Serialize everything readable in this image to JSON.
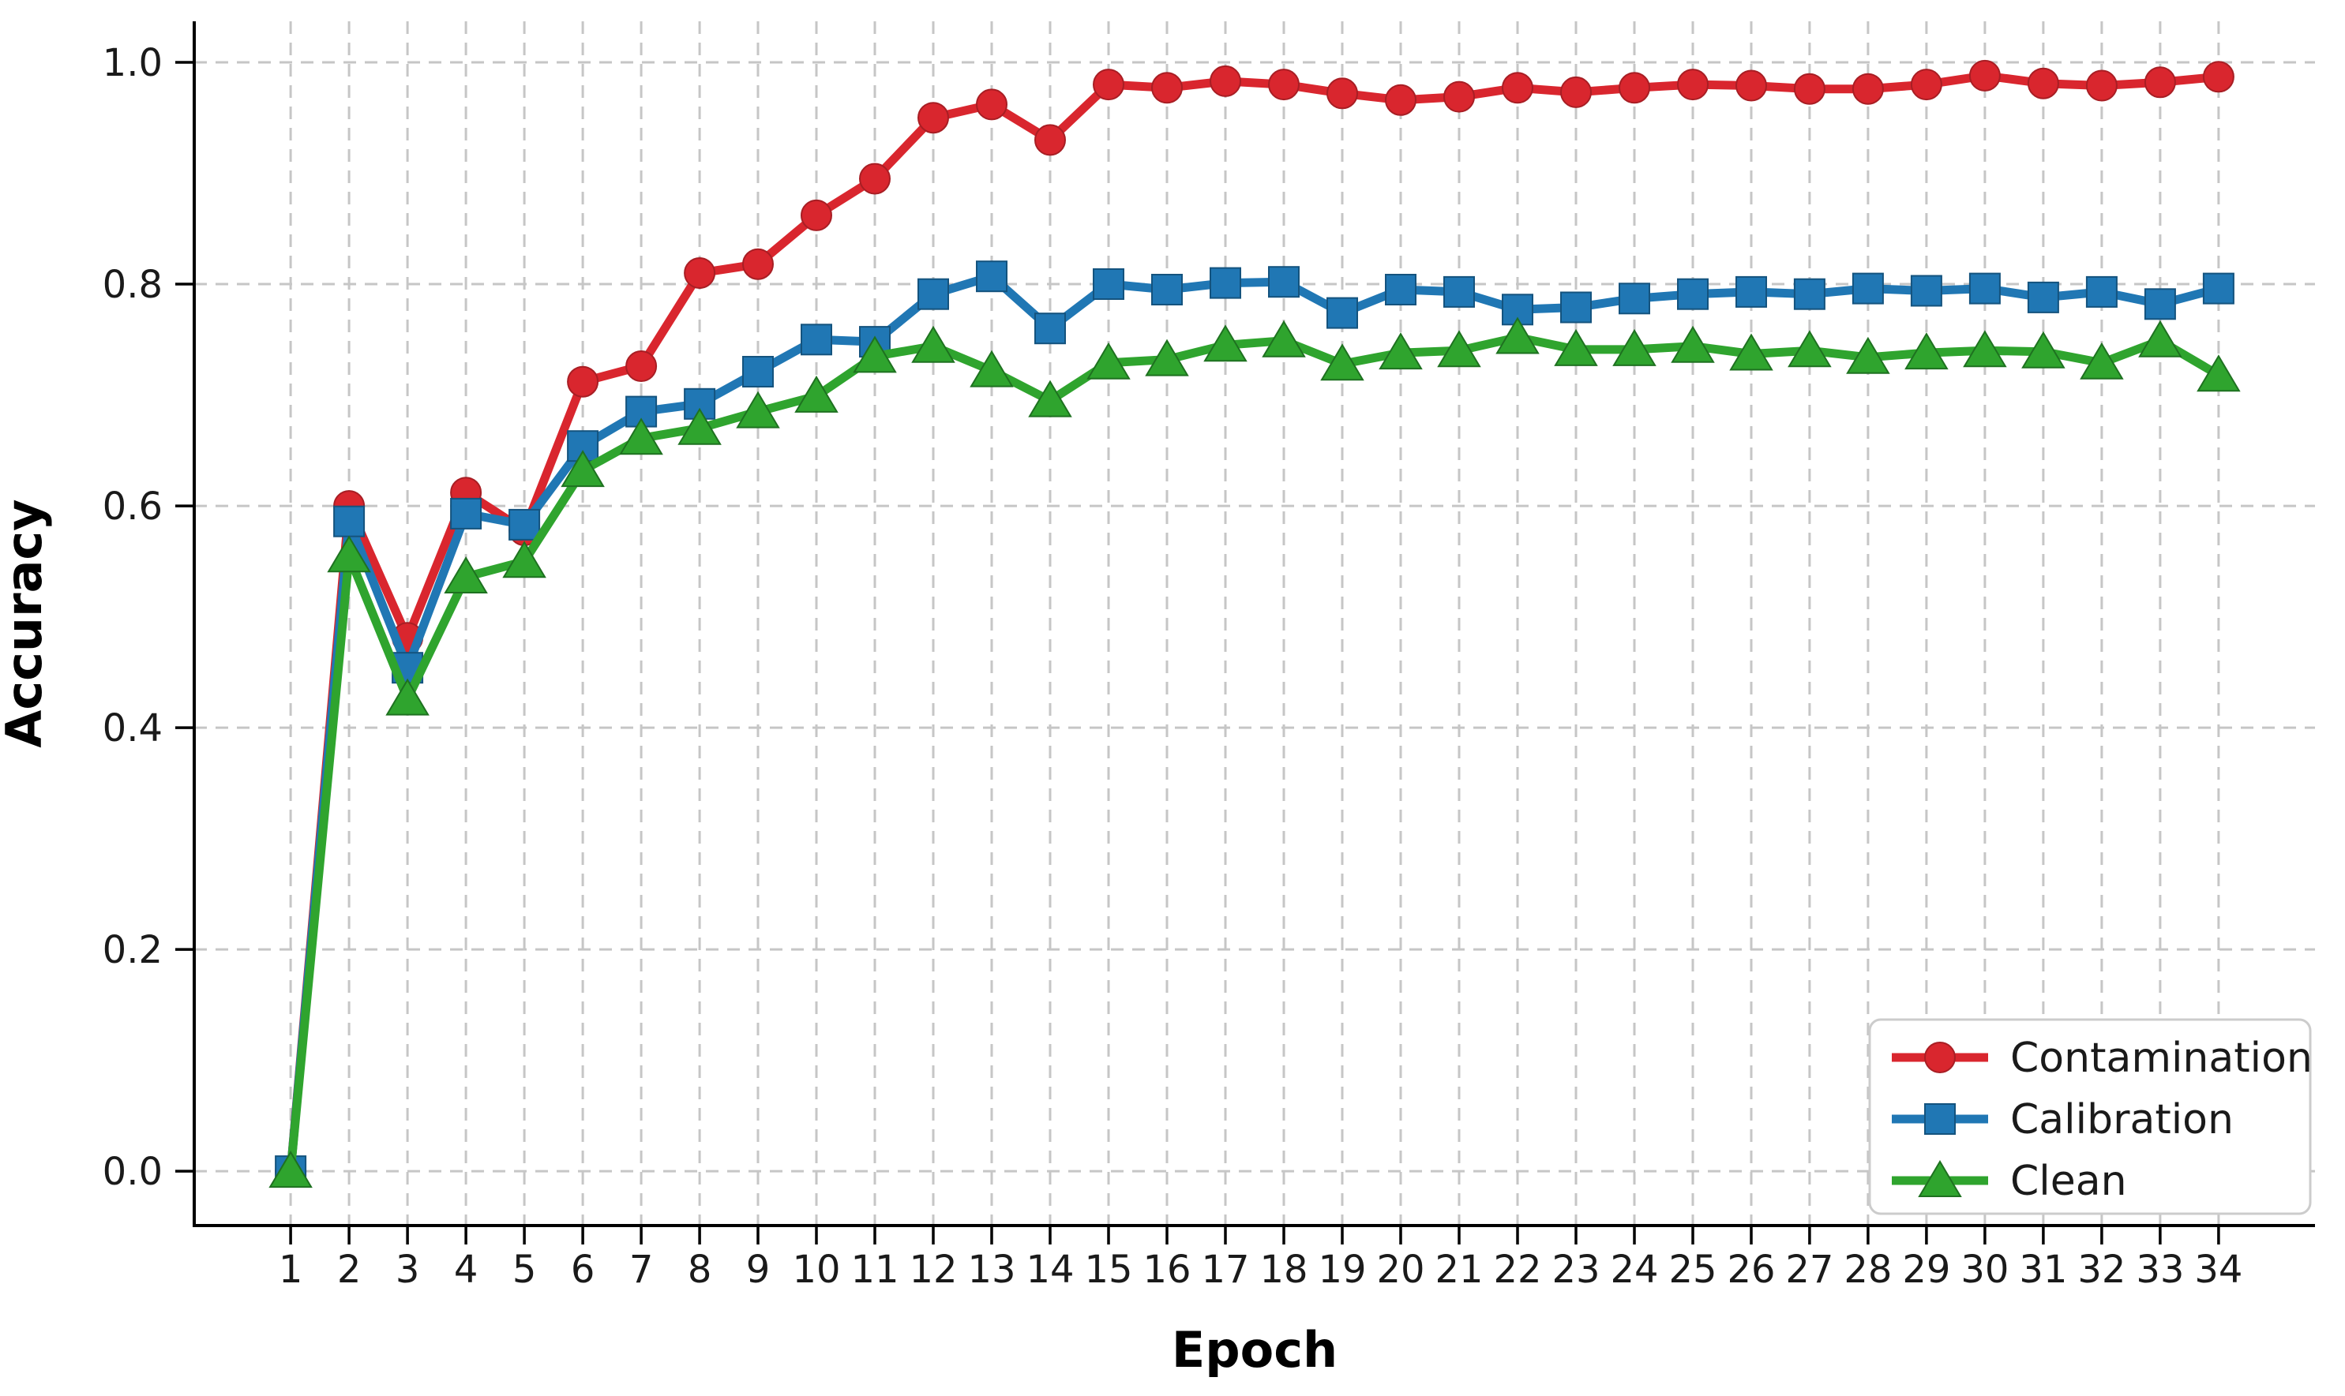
{
  "figure": {
    "background": "#ffffff",
    "axis_color": "#000000",
    "grid_color": "#c6c6c6",
    "legend_border_color": "#cccccc",
    "legend_background": "#ffffff"
  },
  "chart_data": {
    "type": "line",
    "title": "",
    "xlabel": "Epoch",
    "ylabel": "Accuracy",
    "x": [
      1,
      2,
      3,
      4,
      5,
      6,
      7,
      8,
      9,
      10,
      11,
      12,
      13,
      14,
      15,
      16,
      17,
      18,
      19,
      20,
      21,
      22,
      23,
      24,
      25,
      26,
      27,
      28,
      29,
      30,
      31,
      32,
      33,
      34
    ],
    "x_tick_labels": [
      "1",
      "2",
      "3",
      "4",
      "5",
      "6",
      "7",
      "8",
      "9",
      "10",
      "11",
      "12",
      "13",
      "14",
      "15",
      "16",
      "17",
      "18",
      "19",
      "20",
      "21",
      "22",
      "23",
      "24",
      "25",
      "26",
      "27",
      "28",
      "29",
      "30",
      "31",
      "32",
      "33",
      "34"
    ],
    "y_ticks": [
      0.0,
      0.2,
      0.4,
      0.6,
      0.8,
      1.0
    ],
    "y_tick_labels": [
      "0.0",
      "0.2",
      "0.4",
      "0.6",
      "0.8",
      "1.0"
    ],
    "xlim": [
      -0.65,
      35.65
    ],
    "ylim": [
      -0.049,
      1.037
    ],
    "grid": true,
    "grid_style": "dashed",
    "legend_position": "lower right",
    "series": [
      {
        "name": "Contamination",
        "marker": "circle",
        "color": "#d9262e",
        "edge_color": "#a81e24",
        "values": [
          0.0,
          0.6,
          0.481,
          0.612,
          0.578,
          0.712,
          0.726,
          0.81,
          0.818,
          0.862,
          0.895,
          0.95,
          0.962,
          0.93,
          0.98,
          0.977,
          0.983,
          0.98,
          0.972,
          0.966,
          0.969,
          0.977,
          0.973,
          0.977,
          0.98,
          0.979,
          0.976,
          0.976,
          0.98,
          0.988,
          0.981,
          0.979,
          0.982,
          0.987
        ]
      },
      {
        "name": "Calibration",
        "marker": "square",
        "color": "#2077b4",
        "edge_color": "#14537e",
        "values": [
          0.0,
          0.586,
          0.454,
          0.593,
          0.583,
          0.654,
          0.685,
          0.692,
          0.721,
          0.75,
          0.748,
          0.791,
          0.807,
          0.76,
          0.8,
          0.795,
          0.801,
          0.802,
          0.774,
          0.795,
          0.793,
          0.777,
          0.779,
          0.787,
          0.791,
          0.793,
          0.791,
          0.796,
          0.794,
          0.796,
          0.788,
          0.793,
          0.782,
          0.796
        ]
      },
      {
        "name": "Clean",
        "marker": "triangle",
        "color": "#2fa42e",
        "edge_color": "#1e7120",
        "values": [
          0.0,
          0.555,
          0.426,
          0.536,
          0.55,
          0.632,
          0.661,
          0.67,
          0.685,
          0.699,
          0.735,
          0.744,
          0.722,
          0.695,
          0.729,
          0.732,
          0.745,
          0.749,
          0.728,
          0.738,
          0.74,
          0.752,
          0.741,
          0.741,
          0.744,
          0.737,
          0.74,
          0.734,
          0.738,
          0.74,
          0.739,
          0.729,
          0.749,
          0.718
        ]
      }
    ]
  }
}
